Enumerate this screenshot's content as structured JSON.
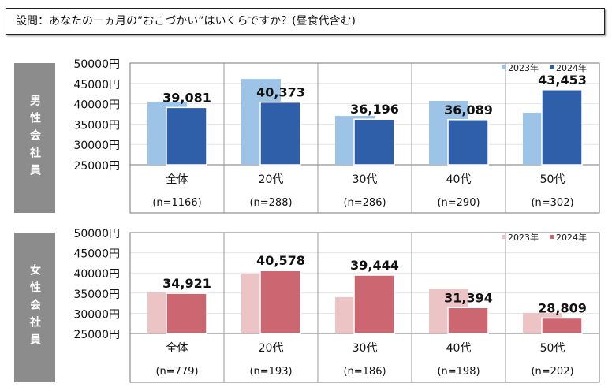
{
  "question": "設問：あなたの一ヵ月の”おこづかい”はいくらですか？(昼食代含む)",
  "chart_data": [
    {
      "type": "bar",
      "panel_label": "男性会社員",
      "categories": [
        "全体",
        "20代",
        "30代",
        "40代",
        "50代"
      ],
      "sample_sizes": [
        "(n=1166)",
        "(n=288)",
        "(n=286)",
        "(n=290)",
        "(n=302)"
      ],
      "ylim": [
        25000,
        50000
      ],
      "yticks": [
        "25000円",
        "30000円",
        "35000円",
        "40000円",
        "45000円",
        "50000円"
      ],
      "grid": true,
      "legend_position": "top-right",
      "series": [
        {
          "name": "2023年",
          "color": "#9dc3e6",
          "values": [
            40500,
            46100,
            37000,
            40700,
            37800
          ]
        },
        {
          "name": "2024年",
          "color": "#2f5fa8",
          "values": [
            39081,
            40373,
            36196,
            36089,
            43453
          ],
          "labels": [
            "39,081",
            "40,373",
            "36,196",
            "36,089",
            "43,453"
          ]
        }
      ]
    },
    {
      "type": "bar",
      "panel_label": "女性会社員",
      "categories": [
        "全体",
        "20代",
        "30代",
        "40代",
        "50代"
      ],
      "sample_sizes": [
        "(n=779)",
        "(n=193)",
        "(n=186)",
        "(n=198)",
        "(n=202)"
      ],
      "ylim": [
        25000,
        50000
      ],
      "yticks": [
        "25000円",
        "30000円",
        "35000円",
        "40000円",
        "45000円",
        "50000円"
      ],
      "grid": true,
      "legend_position": "top-right",
      "series": [
        {
          "name": "2023年",
          "color": "#ecc4c6",
          "values": [
            35200,
            39800,
            34000,
            36000,
            30100
          ]
        },
        {
          "name": "2024年",
          "color": "#cc6670",
          "values": [
            34921,
            40578,
            39444,
            31394,
            28809
          ],
          "labels": [
            "34,921",
            "40,578",
            "39,444",
            "31,394",
            "28,809"
          ]
        }
      ]
    }
  ]
}
